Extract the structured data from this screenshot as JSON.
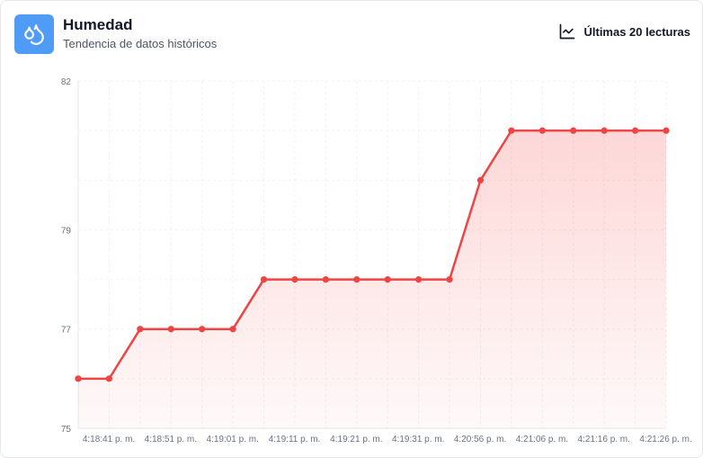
{
  "header": {
    "title": "Humedad",
    "subtitle": "Tendencia de datos históricos",
    "range_label": "Últimas 20 lecturas",
    "icon": "droplets-icon",
    "range_icon": "line-chart-icon",
    "icon_bg_color": "#4f9cf7"
  },
  "chart_data": {
    "type": "area",
    "title": "",
    "xlabel": "",
    "ylabel": "",
    "ylim": [
      75,
      82
    ],
    "y_ticks": [
      75,
      77,
      79,
      82
    ],
    "x_tick_labels": [
      "4:18:41 p. m.",
      "4:18:51 p. m.",
      "4:19:01 p. m.",
      "4:19:11 p. m.",
      "4:19:21 p. m.",
      "4:19:31 p. m.",
      "4:20:56 p. m.",
      "4:21:06 p. m.",
      "4:21:16 p. m.",
      "4:21:26 p. m."
    ],
    "grid": true,
    "line_color": "#ef4444",
    "fill_color": "#fca5a5",
    "series": [
      {
        "values": [
          76,
          76,
          77,
          77,
          77,
          77,
          78,
          78,
          78,
          78,
          78,
          78,
          78,
          80,
          81,
          81,
          81,
          81,
          81,
          81
        ]
      }
    ]
  }
}
